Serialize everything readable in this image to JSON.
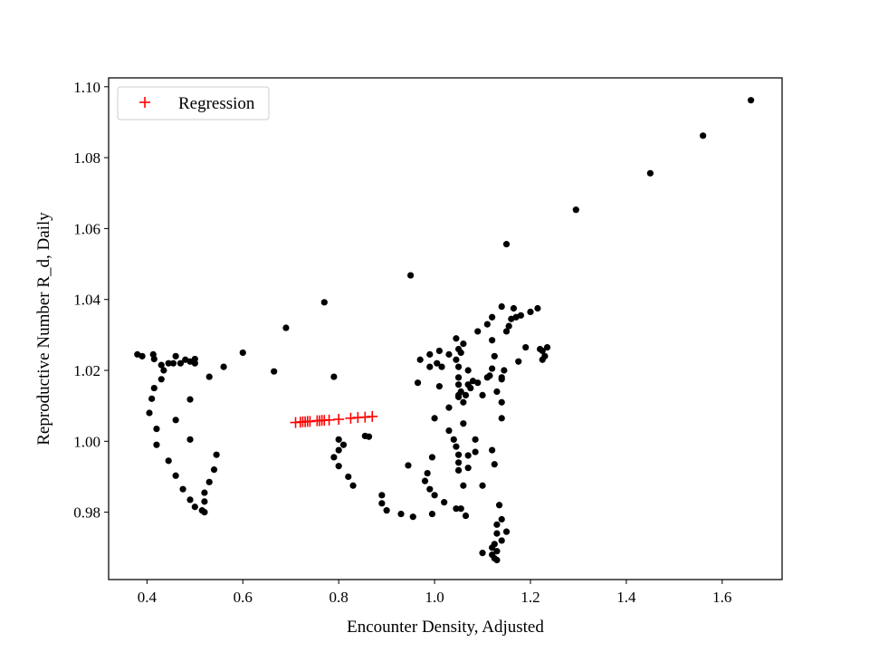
{
  "chart_data": {
    "type": "scatter",
    "xlabel": "Encounter Density, Adjusted",
    "ylabel": "Reproductive Number R_d, Daily",
    "xlim": [
      0.32,
      1.725
    ],
    "ylim": [
      0.961,
      1.1025
    ],
    "xticks": [
      0.4,
      0.6,
      0.8,
      1.0,
      1.2,
      1.4,
      1.6
    ],
    "xtick_labels": [
      "0.4",
      "0.6",
      "0.8",
      "1.0",
      "1.2",
      "1.4",
      "1.6"
    ],
    "yticks": [
      0.98,
      1.0,
      1.02,
      1.04,
      1.06,
      1.08,
      1.1
    ],
    "ytick_labels": [
      "0.98",
      "1.00",
      "1.02",
      "1.04",
      "1.06",
      "1.08",
      "1.10"
    ],
    "grid": false,
    "legend": {
      "position": "top-left",
      "entries": [
        "Regression"
      ]
    },
    "series": [
      {
        "marker": "dot",
        "color": "#000000",
        "points": [
          [
            0.38,
            1.0245
          ],
          [
            0.39,
            1.024
          ],
          [
            0.413,
            1.0245
          ],
          [
            0.415,
            1.0232
          ],
          [
            0.43,
            1.0215
          ],
          [
            0.435,
            1.02
          ],
          [
            0.43,
            1.0175
          ],
          [
            0.415,
            1.015
          ],
          [
            0.41,
            1.012
          ],
          [
            0.405,
            1.008
          ],
          [
            0.42,
            1.0035
          ],
          [
            0.42,
            0.999
          ],
          [
            0.445,
            0.9945
          ],
          [
            0.46,
            0.9903
          ],
          [
            0.475,
            0.9865
          ],
          [
            0.49,
            0.9835
          ],
          [
            0.5,
            0.9815
          ],
          [
            0.515,
            0.9805
          ],
          [
            0.52,
            0.98
          ],
          [
            0.52,
            0.983
          ],
          [
            0.52,
            0.9855
          ],
          [
            0.53,
            0.9885
          ],
          [
            0.54,
            0.992
          ],
          [
            0.545,
            0.9962
          ],
          [
            0.46,
            1.006
          ],
          [
            0.49,
            1.0005
          ],
          [
            0.49,
            1.0118
          ],
          [
            0.445,
            1.022
          ],
          [
            0.455,
            1.022
          ],
          [
            0.46,
            1.024
          ],
          [
            0.47,
            1.022
          ],
          [
            0.48,
            1.023
          ],
          [
            0.49,
            1.0225
          ],
          [
            0.5,
            1.022
          ],
          [
            0.5,
            1.0232
          ],
          [
            0.53,
            1.0182
          ],
          [
            0.56,
            1.021
          ],
          [
            0.6,
            1.025
          ],
          [
            0.665,
            1.0197
          ],
          [
            0.69,
            1.032
          ],
          [
            0.77,
            1.0392
          ],
          [
            0.79,
            1.0182
          ],
          [
            0.8,
            1.0005
          ],
          [
            0.8,
            0.9975
          ],
          [
            0.79,
            0.9955
          ],
          [
            0.81,
            0.999
          ],
          [
            0.8,
            0.993
          ],
          [
            0.82,
            0.99
          ],
          [
            0.83,
            0.9875
          ],
          [
            0.855,
            1.0015
          ],
          [
            0.863,
            1.0013
          ],
          [
            0.89,
            0.9848
          ],
          [
            0.89,
            0.9825
          ],
          [
            0.9,
            0.9805
          ],
          [
            0.93,
            0.9795
          ],
          [
            0.955,
            0.9787
          ],
          [
            0.945,
            0.9932
          ],
          [
            0.95,
            1.0468
          ],
          [
            0.965,
            1.0165
          ],
          [
            0.97,
            1.023
          ],
          [
            0.99,
            1.0245
          ],
          [
            0.99,
            1.021
          ],
          [
            1.005,
            1.022
          ],
          [
            1.01,
            1.0255
          ],
          [
            1.01,
            1.0155
          ],
          [
            1.015,
            1.021
          ],
          [
            0.985,
            0.991
          ],
          [
            0.98,
            0.9888
          ],
          [
            0.99,
            0.9865
          ],
          [
            0.995,
            0.9955
          ],
          [
            1.0,
            0.9848
          ],
          [
            0.995,
            0.9795
          ],
          [
            1.02,
            0.9828
          ],
          [
            1.0,
            1.0065
          ],
          [
            1.03,
            1.0095
          ],
          [
            1.03,
            1.003
          ],
          [
            1.04,
            1.0005
          ],
          [
            1.045,
            0.9985
          ],
          [
            1.05,
            0.9962
          ],
          [
            1.05,
            0.994
          ],
          [
            1.05,
            0.9918
          ],
          [
            1.045,
            0.981
          ],
          [
            1.055,
            0.981
          ],
          [
            1.06,
            0.9875
          ],
          [
            1.03,
            1.0245
          ],
          [
            1.045,
            1.029
          ],
          [
            1.05,
            1.026
          ],
          [
            1.045,
            1.023
          ],
          [
            1.05,
            1.021
          ],
          [
            1.05,
            1.018
          ],
          [
            1.05,
            1.016
          ],
          [
            1.055,
            1.014
          ],
          [
            1.05,
            1.0125
          ],
          [
            1.06,
            1.011
          ],
          [
            1.065,
            1.013
          ],
          [
            1.07,
            1.02
          ],
          [
            1.07,
            1.016
          ],
          [
            1.08,
            1.017
          ],
          [
            1.075,
            1.015
          ],
          [
            1.09,
            1.0165
          ],
          [
            1.06,
            1.0275
          ],
          [
            1.055,
            1.025
          ],
          [
            1.05,
            1.013
          ],
          [
            1.06,
            1.005
          ],
          [
            1.065,
            0.979
          ],
          [
            1.07,
            0.996
          ],
          [
            1.07,
            0.9925
          ],
          [
            1.085,
            1.0005
          ],
          [
            1.085,
            0.997
          ],
          [
            1.09,
            1.031
          ],
          [
            1.1,
            0.9875
          ],
          [
            1.1,
            1.013
          ],
          [
            1.1,
            0.9685
          ],
          [
            1.11,
            1.018
          ],
          [
            1.11,
            1.033
          ],
          [
            1.115,
            1.0185
          ],
          [
            1.12,
            1.0285
          ],
          [
            1.12,
            1.035
          ],
          [
            1.12,
            1.0205
          ],
          [
            1.12,
            0.9975
          ],
          [
            1.125,
            0.9935
          ],
          [
            1.12,
            0.97
          ],
          [
            1.12,
            0.968
          ],
          [
            1.125,
            0.971
          ],
          [
            1.125,
            0.967
          ],
          [
            1.13,
            0.969
          ],
          [
            1.13,
            0.974
          ],
          [
            1.13,
            0.9765
          ],
          [
            1.13,
            0.9665
          ],
          [
            1.135,
            0.982
          ],
          [
            1.14,
            0.978
          ],
          [
            1.14,
            0.972
          ],
          [
            1.15,
            0.9745
          ],
          [
            1.14,
            1.018
          ],
          [
            1.14,
            1.0175
          ],
          [
            1.14,
            1.011
          ],
          [
            1.14,
            1.0065
          ],
          [
            1.13,
            1.014
          ],
          [
            1.125,
            1.024
          ],
          [
            1.14,
            1.038
          ],
          [
            1.145,
            1.02
          ],
          [
            1.15,
            1.031
          ],
          [
            1.155,
            1.0325
          ],
          [
            1.16,
            1.0345
          ],
          [
            1.165,
            1.0375
          ],
          [
            1.17,
            1.035
          ],
          [
            1.175,
            1.0225
          ],
          [
            1.18,
            1.0355
          ],
          [
            1.19,
            1.0265
          ],
          [
            1.2,
            1.0365
          ],
          [
            1.215,
            1.0375
          ],
          [
            1.22,
            1.026
          ],
          [
            1.225,
            1.0255
          ],
          [
            1.225,
            1.023
          ],
          [
            1.23,
            1.024
          ],
          [
            1.235,
            1.0265
          ],
          [
            1.15,
            1.0556
          ],
          [
            1.295,
            1.0653
          ],
          [
            1.45,
            1.0756
          ],
          [
            1.56,
            1.0862
          ],
          [
            1.66,
            1.0962
          ]
        ]
      },
      {
        "name": "Regression",
        "marker": "plus",
        "color": "#ff0000",
        "points": [
          [
            0.71,
            1.0053
          ],
          [
            0.72,
            1.0054
          ],
          [
            0.725,
            1.0055
          ],
          [
            0.73,
            1.0055
          ],
          [
            0.735,
            1.0056
          ],
          [
            0.74,
            1.0056
          ],
          [
            0.755,
            1.0058
          ],
          [
            0.76,
            1.0058
          ],
          [
            0.765,
            1.0059
          ],
          [
            0.77,
            1.0059
          ],
          [
            0.78,
            1.006
          ],
          [
            0.8,
            1.0062
          ],
          [
            0.825,
            1.0065
          ],
          [
            0.84,
            1.0067
          ],
          [
            0.855,
            1.0068
          ],
          [
            0.87,
            1.007
          ]
        ]
      }
    ]
  }
}
